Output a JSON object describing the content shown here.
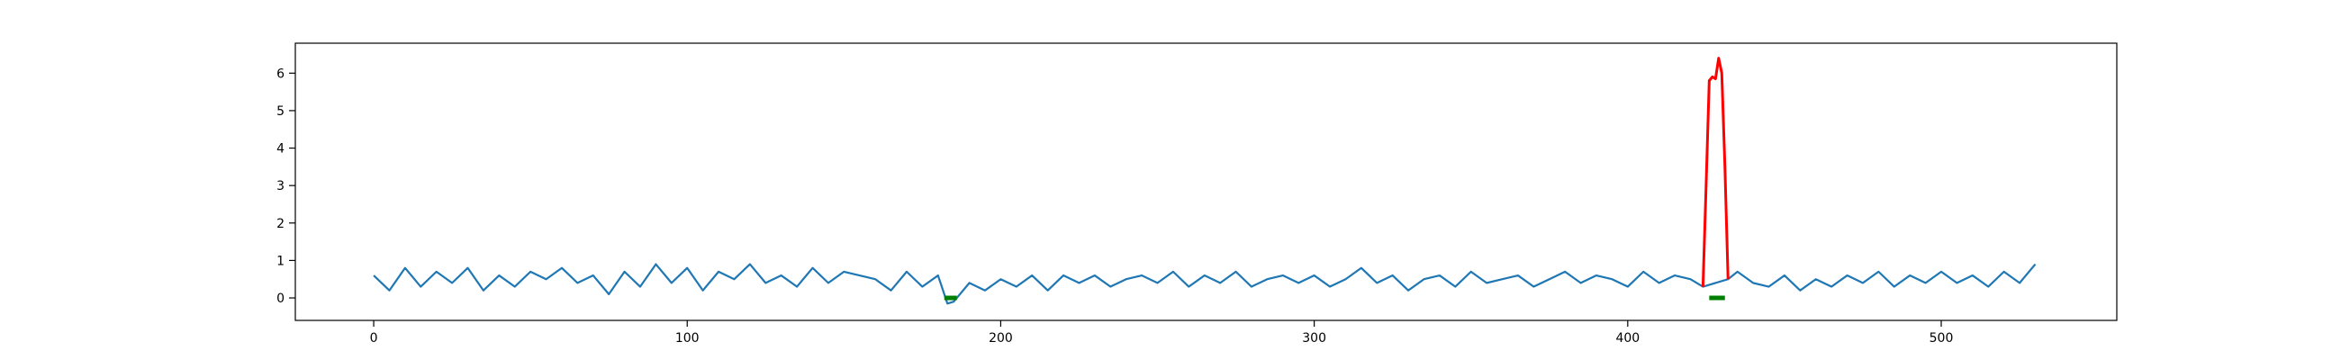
{
  "chart_data": {
    "type": "line",
    "title": "",
    "xlabel": "",
    "ylabel": "",
    "xlim": [
      -25,
      556
    ],
    "ylim": [
      -0.6,
      6.8
    ],
    "xticks": [
      0,
      100,
      200,
      300,
      400,
      500
    ],
    "xtick_labels": [
      "0",
      "100",
      "200",
      "300",
      "400",
      "500"
    ],
    "yticks": [
      0,
      1,
      2,
      3,
      4,
      5,
      6
    ],
    "ytick_labels": [
      "0",
      "1",
      "2",
      "3",
      "4",
      "5",
      "6"
    ],
    "grid": false,
    "legend": "none",
    "colors": {
      "signal": "#1f77b4",
      "anomaly": "#ff0000",
      "marker": "#008000"
    },
    "series": [
      {
        "role": "signal",
        "x": [
          0,
          5,
          10,
          15,
          20,
          25,
          30,
          35,
          40,
          45,
          50,
          55,
          60,
          65,
          70,
          75,
          80,
          85,
          90,
          95,
          100,
          105,
          110,
          115,
          120,
          125,
          130,
          135,
          140,
          145,
          150,
          155,
          160,
          165,
          170,
          175,
          180,
          182,
          183,
          185,
          190,
          195,
          200,
          205,
          210,
          215,
          220,
          225,
          230,
          235,
          240,
          245,
          250,
          255,
          260,
          265,
          270,
          275,
          280,
          285,
          290,
          295,
          300,
          305,
          310,
          315,
          320,
          325,
          330,
          335,
          340,
          345,
          350,
          355,
          360,
          365,
          370,
          375,
          380,
          385,
          390,
          395,
          400,
          405,
          410,
          415,
          420,
          424,
          432,
          435,
          440,
          445,
          450,
          455,
          460,
          465,
          470,
          475,
          480,
          485,
          490,
          495,
          500,
          505,
          510,
          515,
          520,
          525,
          530
        ],
        "y": [
          0.6,
          0.2,
          0.8,
          0.3,
          0.7,
          0.4,
          0.8,
          0.2,
          0.6,
          0.3,
          0.7,
          0.5,
          0.8,
          0.4,
          0.6,
          0.1,
          0.7,
          0.3,
          0.9,
          0.4,
          0.8,
          0.2,
          0.7,
          0.5,
          0.9,
          0.4,
          0.6,
          0.3,
          0.8,
          0.4,
          0.7,
          0.6,
          0.5,
          0.2,
          0.7,
          0.3,
          0.6,
          0.1,
          -0.15,
          -0.1,
          0.4,
          0.2,
          0.5,
          0.3,
          0.6,
          0.2,
          0.6,
          0.4,
          0.6,
          0.3,
          0.5,
          0.6,
          0.4,
          0.7,
          0.3,
          0.6,
          0.4,
          0.7,
          0.3,
          0.5,
          0.6,
          0.4,
          0.6,
          0.3,
          0.5,
          0.8,
          0.4,
          0.6,
          0.2,
          0.5,
          0.6,
          0.3,
          0.7,
          0.4,
          0.5,
          0.6,
          0.3,
          0.5,
          0.7,
          0.4,
          0.6,
          0.5,
          0.3,
          0.7,
          0.4,
          0.6,
          0.5,
          0.3,
          0.5,
          0.7,
          0.4,
          0.3,
          0.6,
          0.2,
          0.5,
          0.3,
          0.6,
          0.4,
          0.7,
          0.3,
          0.6,
          0.4,
          0.7,
          0.4,
          0.6,
          0.3,
          0.7,
          0.4,
          0.9
        ]
      },
      {
        "role": "anomaly",
        "x": [
          424,
          425,
          426,
          427,
          428,
          429,
          430,
          431,
          432
        ],
        "y": [
          0.3,
          3.0,
          5.8,
          5.9,
          5.85,
          6.4,
          6.0,
          3.5,
          0.5
        ]
      }
    ],
    "markers": [
      {
        "x_start": 182,
        "x_end": 186,
        "y": 0
      },
      {
        "x_start": 426,
        "x_end": 431,
        "y": 0
      }
    ]
  }
}
